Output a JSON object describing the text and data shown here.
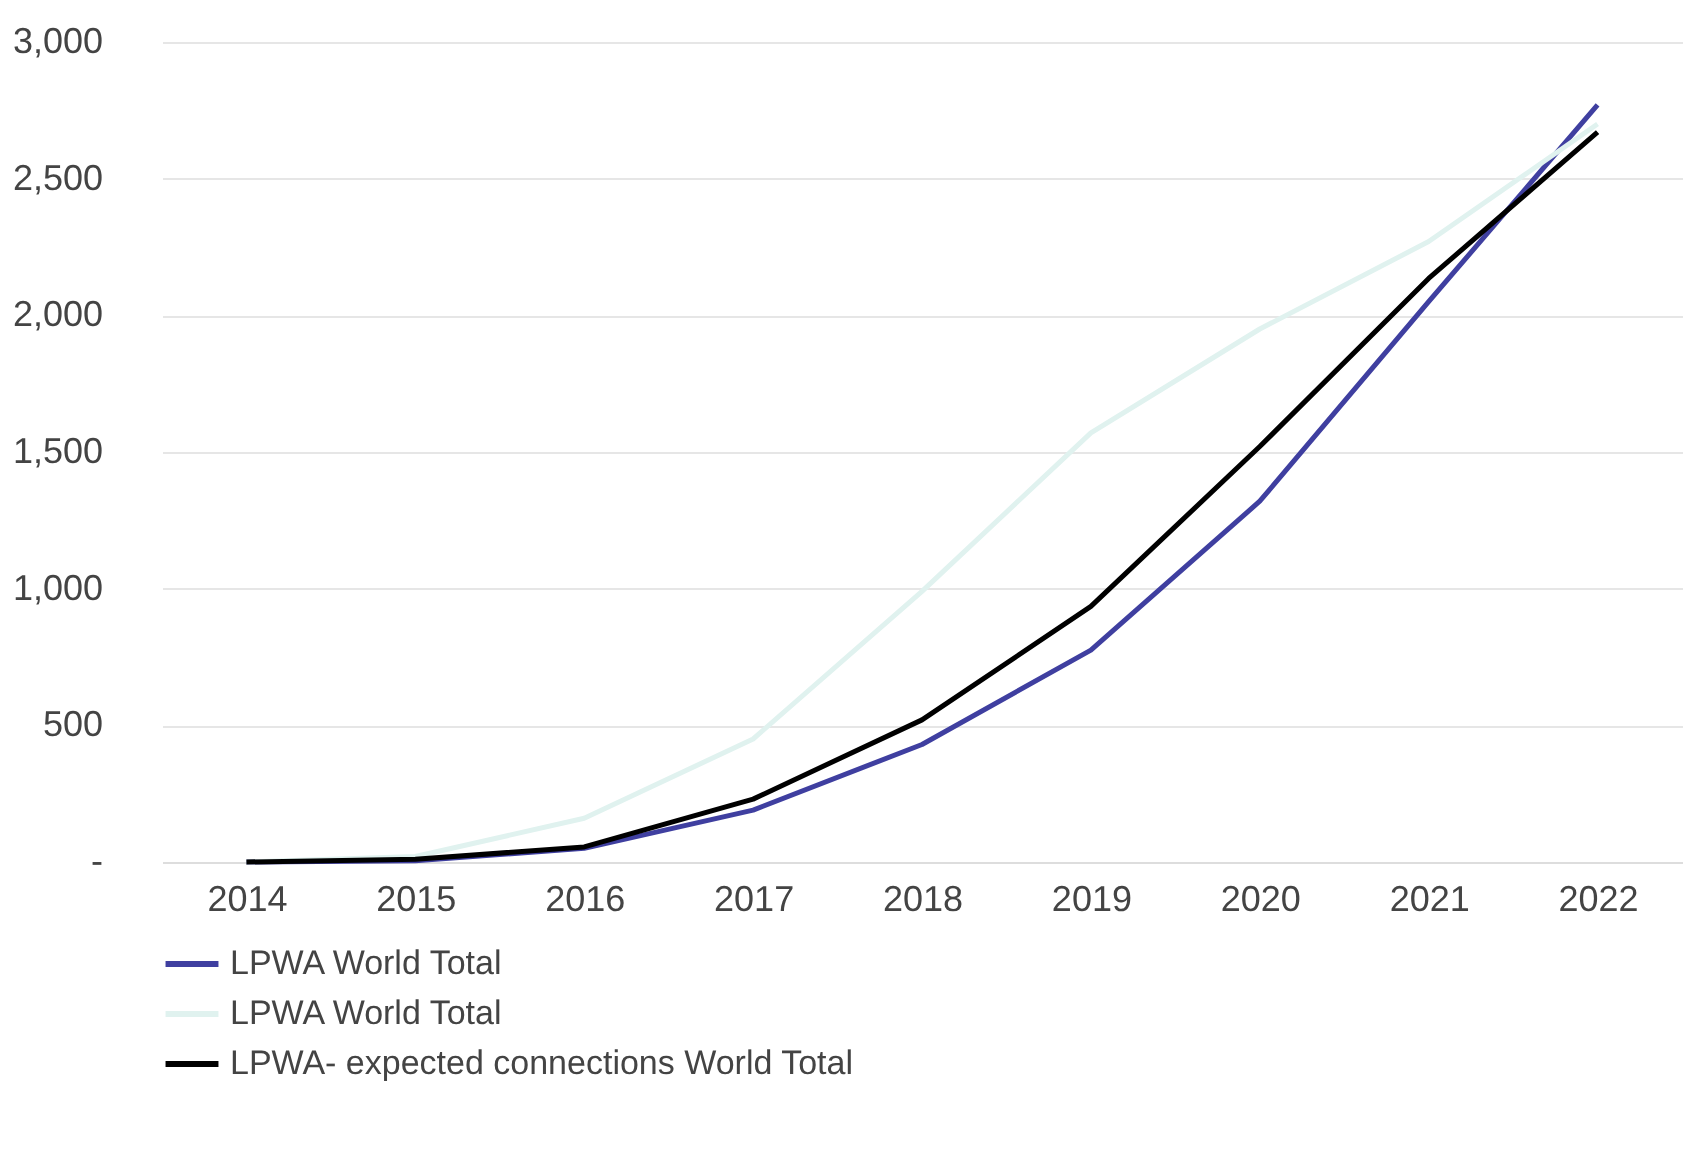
{
  "chart_data": {
    "type": "line",
    "categories": [
      "2014",
      "2015",
      "2016",
      "2017",
      "2018",
      "2019",
      "2020",
      "2021",
      "2022"
    ],
    "series": [
      {
        "name": "LPWA World Total",
        "color": "#3f3fa0",
        "values": [
          0,
          5,
          50,
          190,
          430,
          775,
          1320,
          2050,
          2770
        ]
      },
      {
        "name": "LPWA World Total",
        "color": "#e0f2ef",
        "values": [
          0,
          20,
          160,
          450,
          990,
          1570,
          1950,
          2270,
          2700
        ]
      },
      {
        "name": "LPWA- expected connections World Total",
        "color": "#000000",
        "values": [
          0,
          10,
          55,
          230,
          520,
          935,
          1520,
          2135,
          2670
        ]
      }
    ],
    "ylim": [
      0,
      3000
    ],
    "yticks": [
      {
        "value": 0,
        "label": "-"
      },
      {
        "value": 500,
        "label": "500"
      },
      {
        "value": 1000,
        "label": "1,000"
      },
      {
        "value": 1500,
        "label": "1,500"
      },
      {
        "value": 2000,
        "label": "2,000"
      },
      {
        "value": 2500,
        "label": "2,500"
      },
      {
        "value": 3000,
        "label": "3,000"
      }
    ],
    "grid": "y",
    "legend": "bottom"
  }
}
